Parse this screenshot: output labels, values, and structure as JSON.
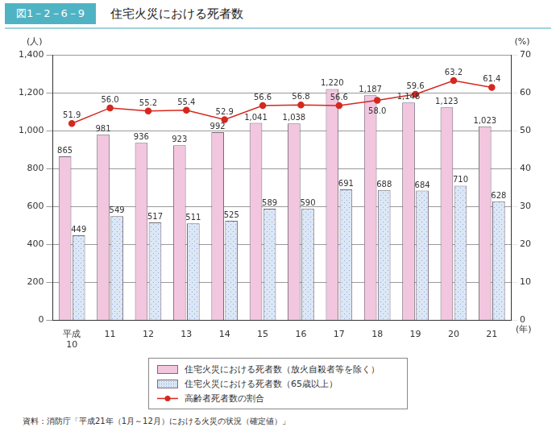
{
  "chart_data": {
    "type": "bar",
    "figure_number": "図1－2－6－9",
    "title": "住宅火災における死者数",
    "source": "資料：消防庁「平成21年（1月～12月）における火災の状況（確定値）」",
    "categories": [
      "平成\n10",
      "11",
      "12",
      "13",
      "14",
      "15",
      "16",
      "17",
      "18",
      "19",
      "20",
      "21"
    ],
    "x_label": "(年)",
    "y_label": "(人)",
    "y2_label": "(%)",
    "ylim": [
      0,
      1400
    ],
    "yticks": [
      0,
      200,
      400,
      600,
      800,
      {
        "value": 1000,
        "label": "1,000"
      },
      {
        "value": 1200,
        "label": "1,200"
      },
      {
        "value": 1400,
        "label": "1,400"
      }
    ],
    "y2lim": [
      0,
      70
    ],
    "y2ticks": [
      0,
      10,
      20,
      30,
      40,
      50,
      60,
      70
    ],
    "grid": true,
    "legend": "bottom",
    "data_labels": true,
    "series": [
      {
        "name": "住宅火災における死者数（放火自殺者等を除く）",
        "type": "bar",
        "color": "#f2c6de",
        "values": [
          865,
          981,
          936,
          923,
          992,
          1041,
          1038,
          1220,
          1187,
          1148,
          1123,
          1023
        ],
        "value_labels": [
          "865",
          "981",
          "936",
          "923",
          "992",
          "1,041",
          "1,038",
          "1,220",
          "1,187",
          "1,148",
          "1,123",
          "1,023"
        ]
      },
      {
        "name": "住宅火災における死者数（65歳以上）",
        "type": "bar",
        "color": "#dce7f6",
        "values": [
          449,
          549,
          517,
          511,
          525,
          589,
          590,
          691,
          688,
          684,
          710,
          628
        ]
      },
      {
        "name": "高齢者死者数の割合",
        "type": "line",
        "axis": "y2",
        "color": "#d5281f",
        "marker": "circle",
        "values": [
          51.9,
          56.0,
          55.2,
          55.4,
          52.9,
          56.6,
          56.8,
          56.6,
          58.0,
          59.6,
          63.2,
          61.4
        ],
        "value_labels": [
          "51.9",
          "56.0",
          "55.2",
          "55.4",
          "52.9",
          "56.6",
          "56.8",
          "56.6",
          "58.0",
          "59.6",
          "63.2",
          "61.4"
        ]
      }
    ]
  }
}
